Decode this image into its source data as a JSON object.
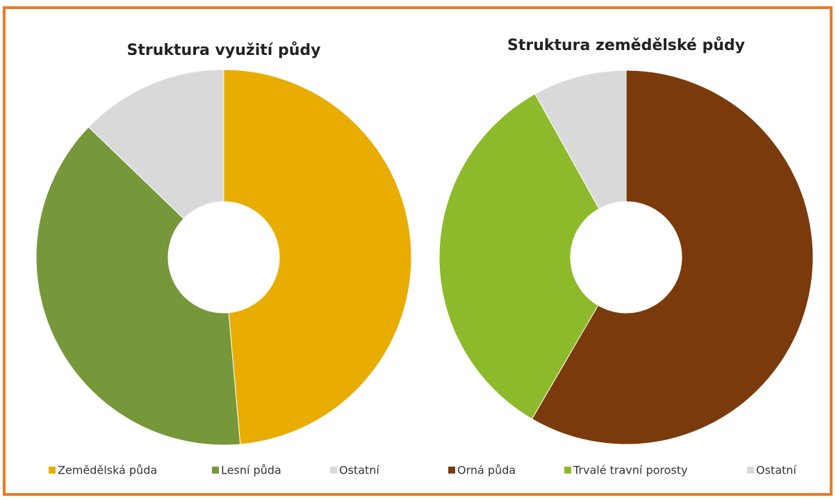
{
  "chart_data": [
    {
      "type": "donut",
      "title": "Struktura využití půdy",
      "categories": [
        "Zemědělská půda",
        "Lesní půda",
        "Ostatní"
      ],
      "values": [
        48.6,
        38.6,
        12.8
      ],
      "colors": [
        "#e8ad00",
        "#76973a",
        "#d9d9d9"
      ]
    },
    {
      "type": "donut",
      "title": "Struktura zemědělské půdy",
      "categories": [
        "Orná půda",
        "Trvalé travní porosty",
        "Ostatní"
      ],
      "values": [
        58.4,
        33.5,
        8.1
      ],
      "colors": [
        "#7a3a0b",
        "#8cba2a",
        "#d9d9d9"
      ]
    }
  ]
}
